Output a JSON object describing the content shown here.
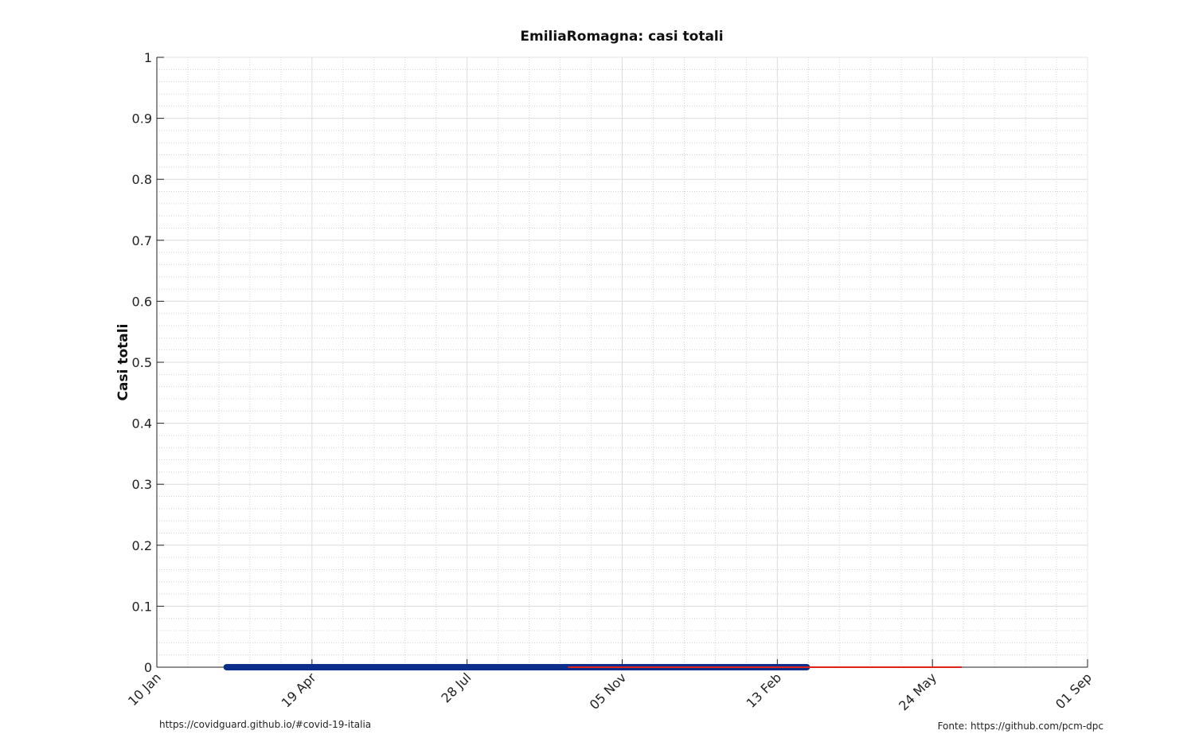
{
  "footer": {
    "left": "https://covidguard.github.io/#covid-19-italia",
    "right": "Fonte: https://github.com/pcm-dpc"
  },
  "chart_data": {
    "type": "line",
    "title": "EmiliaRomagna: casi totali",
    "xlabel": "",
    "ylabel": "Casi totali",
    "xlim": [
      "2020-01-10",
      "2022-09-01"
    ],
    "ylim": [
      0,
      1
    ],
    "x_ticks": [
      "10 Jan",
      "19 Apr",
      "28 Jul",
      "05 Nov",
      "13 Feb",
      "24 May",
      "01 Sep"
    ],
    "x_tick_dates": [
      "2020-01-10",
      "2020-04-19",
      "2020-07-28",
      "2020-11-05",
      "2021-02-13",
      "2021-05-24",
      "2021-09-01"
    ],
    "y_ticks": [
      "0",
      "0.1",
      "0.2",
      "0.3",
      "0.4",
      "0.5",
      "0.6",
      "0.7",
      "0.8",
      "0.9",
      "1"
    ],
    "grid": true,
    "series": [
      {
        "color": "#0b2e8a",
        "x": [
          "2020-02-24",
          "2021-03-04"
        ],
        "y": [
          0,
          0
        ]
      },
      {
        "color": "#e0201b",
        "x": [
          "2020-10-01",
          "2021-06-12"
        ],
        "y": [
          0,
          0
        ]
      }
    ]
  }
}
